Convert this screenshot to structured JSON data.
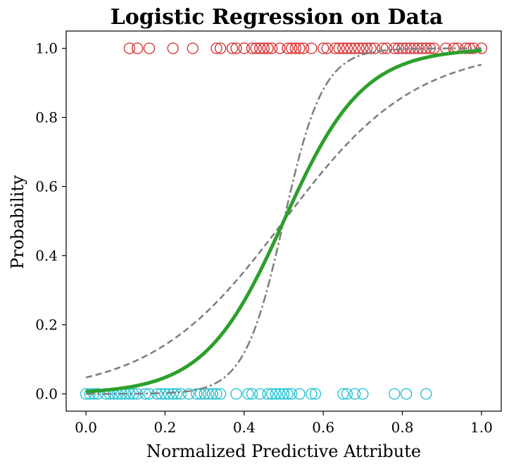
{
  "chart_data": {
    "type": "scatter",
    "title": "Logistic Regression on Data",
    "xlabel": "Normalized Predictive Attribute",
    "ylabel": "Probability",
    "xlim": [
      -0.05,
      1.05
    ],
    "ylim": [
      -0.05,
      1.05
    ],
    "xticks": [
      "0.0",
      "0.2",
      "0.4",
      "0.6",
      "0.8",
      "1.0"
    ],
    "yticks": [
      "0.0",
      "0.2",
      "0.4",
      "0.6",
      "0.8",
      "1.0"
    ],
    "grid": false,
    "points_class1": {
      "y": 1,
      "color": "#d62728",
      "x": [
        0.11,
        0.13,
        0.16,
        0.22,
        0.27,
        0.33,
        0.34,
        0.37,
        0.38,
        0.4,
        0.42,
        0.43,
        0.44,
        0.45,
        0.46,
        0.47,
        0.49,
        0.51,
        0.52,
        0.53,
        0.54,
        0.55,
        0.57,
        0.6,
        0.61,
        0.63,
        0.64,
        0.65,
        0.66,
        0.67,
        0.68,
        0.69,
        0.7,
        0.71,
        0.72,
        0.73,
        0.75,
        0.76,
        0.78,
        0.79,
        0.8,
        0.81,
        0.82,
        0.83,
        0.84,
        0.85,
        0.86,
        0.87,
        0.88,
        0.91,
        0.93,
        0.94,
        0.96,
        0.97,
        0.98,
        1.0
      ]
    },
    "points_class0": {
      "y": 0,
      "color": "#17becf",
      "x": [
        0.0,
        0.01,
        0.02,
        0.03,
        0.05,
        0.06,
        0.07,
        0.08,
        0.09,
        0.1,
        0.11,
        0.12,
        0.13,
        0.15,
        0.16,
        0.18,
        0.19,
        0.2,
        0.21,
        0.22,
        0.23,
        0.24,
        0.26,
        0.28,
        0.29,
        0.3,
        0.31,
        0.32,
        0.33,
        0.34,
        0.38,
        0.41,
        0.42,
        0.44,
        0.46,
        0.47,
        0.48,
        0.49,
        0.5,
        0.51,
        0.52,
        0.54,
        0.57,
        0.58,
        0.65,
        0.66,
        0.68,
        0.7,
        0.78,
        0.81,
        0.86
      ]
    },
    "series": [
      {
        "style": "solid",
        "color": "#2ca02c",
        "x0": 0.5,
        "k": 10
      },
      {
        "style": "dashed",
        "color": "#808080",
        "x0": 0.5,
        "k": 6
      },
      {
        "style": "dashdot",
        "color": "#808080",
        "x0": 0.5,
        "k": 20
      }
    ]
  }
}
